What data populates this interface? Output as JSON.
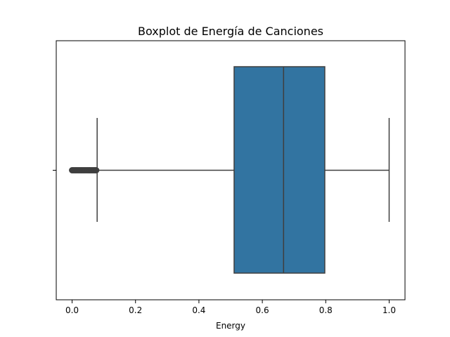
{
  "chart_data": {
    "type": "boxplot",
    "orientation": "horizontal",
    "title": "Boxplot de Energía de Canciones",
    "xlabel": "Energy",
    "ylabel": "",
    "xlim": [
      -0.05,
      1.05
    ],
    "xticks": [
      0.0,
      0.2,
      0.4,
      0.6,
      0.8,
      1.0
    ],
    "xtick_labels": [
      "0.0",
      "0.2",
      "0.4",
      "0.6",
      "0.8",
      "1.0"
    ],
    "grid": false,
    "box": {
      "whisker_low": 0.079,
      "q1": 0.511,
      "median": 0.667,
      "q3": 0.797,
      "whisker_high": 1.0
    },
    "outliers": [
      0.0,
      0.004,
      0.008,
      0.012,
      0.016,
      0.02,
      0.024,
      0.028,
      0.032,
      0.036,
      0.04,
      0.044,
      0.048,
      0.052,
      0.056,
      0.06,
      0.064,
      0.068,
      0.072,
      0.076
    ],
    "colors": {
      "box_fill": "#3274a1",
      "line": "#3f3f3f",
      "axis": "#000000"
    }
  }
}
